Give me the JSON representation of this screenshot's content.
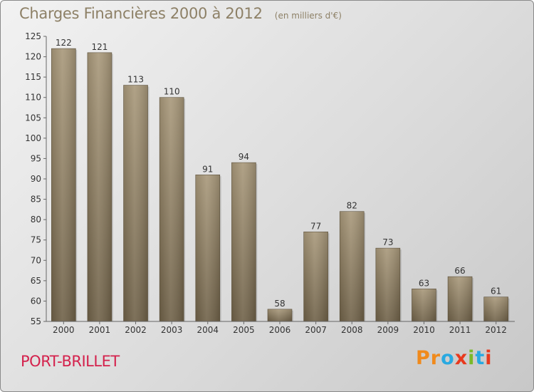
{
  "header": {
    "title": "Charges Financières 2000 à 2012",
    "subtitle": "(en milliers d'€)"
  },
  "footer": {
    "place": "PORT-BRILLET",
    "logo": {
      "letters": [
        "P",
        "r",
        "o",
        "x",
        "i",
        "t",
        "i"
      ],
      "colors": [
        "#f08a1c",
        "#f08a1c",
        "#29a9e1",
        "#e8391d",
        "#7ab929",
        "#29a9e1",
        "#e8391d"
      ]
    }
  },
  "chart_data": {
    "type": "bar",
    "title": "Charges Financières 2000 à 2012",
    "subtitle": "(en milliers d'€)",
    "categories": [
      "2000",
      "2001",
      "2002",
      "2003",
      "2004",
      "2005",
      "2006",
      "2007",
      "2008",
      "2009",
      "2010",
      "2011",
      "2012"
    ],
    "values": [
      122,
      121,
      113,
      110,
      91,
      94,
      58,
      77,
      82,
      73,
      63,
      66,
      61
    ],
    "ylim": [
      55,
      125
    ],
    "yticks": [
      55,
      60,
      65,
      70,
      75,
      80,
      85,
      90,
      95,
      100,
      105,
      110,
      115,
      120,
      125
    ],
    "grid": false,
    "bar_color": "#8c7b5e",
    "data_labels": true
  }
}
